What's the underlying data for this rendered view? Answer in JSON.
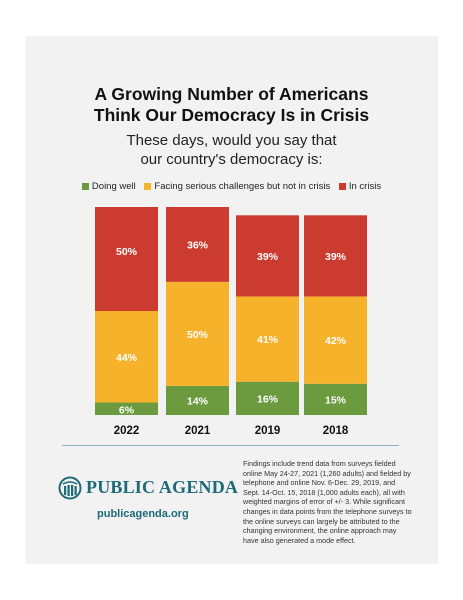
{
  "colors": {
    "doing_well": "#6c9a3f",
    "facing_challenges": "#f7b22b",
    "in_crisis": "#cc3b2f",
    "brand": "#1d6a78"
  },
  "header": {
    "title_line1": "A Growing Number of Americans",
    "title_line2": "Think Our Democracy Is in Crisis",
    "subtitle_line1": "These days, would you say that",
    "subtitle_line2": "our country's democracy is:"
  },
  "legend": [
    {
      "label": "Doing well",
      "color": "#6c9a3f"
    },
    {
      "label": "Facing serious challenges but not in crisis",
      "color": "#f7b22b"
    },
    {
      "label": "In crisis",
      "color": "#cc3b2f"
    }
  ],
  "chart_data": {
    "type": "bar",
    "stacked": true,
    "unit": "%",
    "categories": [
      "2022",
      "2021",
      "2019",
      "2018"
    ],
    "series": [
      {
        "name": "Doing well",
        "values": [
          6,
          14,
          16,
          15
        ]
      },
      {
        "name": "Facing serious challenges but not in crisis",
        "values": [
          44,
          50,
          41,
          42
        ]
      },
      {
        "name": "In crisis",
        "values": [
          50,
          36,
          39,
          39
        ]
      }
    ],
    "legend_position": "top",
    "grid": false
  },
  "footer": {
    "brand_name": "PUBLIC AGENDA",
    "url": "publicagenda.org",
    "footnote": "Findings include trend data from surveys fielded online May 24-27, 2021 (1,260 adults) and fielded by telephone and online Nov. 6-Dec. 29, 2019, and Sept. 14-Oct. 15, 2018 (1,000 adults each), all with weighted margins of error of +/- 3. While significant changes in data points from the telephone surveys to the online surveys can largely be attributed to the changing environment, the online approach may have also generated a mode effect.",
    "logo_icon": "globe-icon"
  }
}
